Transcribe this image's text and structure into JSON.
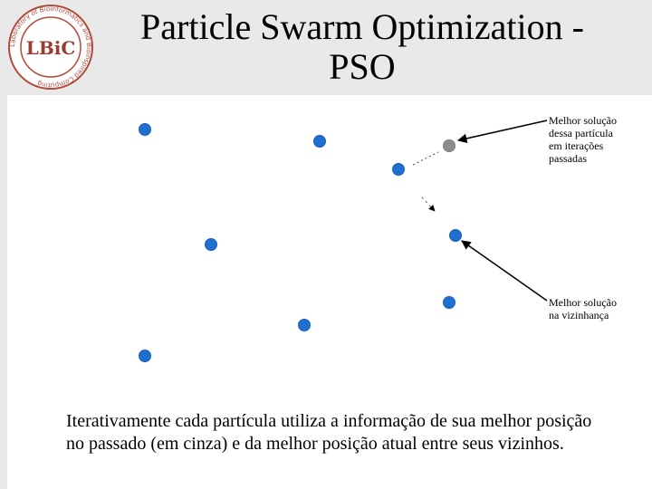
{
  "title": "Particle Swarm Optimization -\nPSO",
  "logo": {
    "initials": "LBiC",
    "ring_text": "Laboratory of Bioinformatics and Bioinspired Computing",
    "accent_color": "#9b3a2e",
    "ring_color": "#b04a3a"
  },
  "annotations": {
    "best_own": "Melhor solução\ndessa partícula\nem iterações\npassadas",
    "best_neighborhood": "Melhor solução\nna vizinhança"
  },
  "body_text": "Iterativamente cada partícula utiliza a informação de sua melhor posição no passado (em cinza) e da melhor posição atual entre seus vizinhos.",
  "colors": {
    "particle": "#1f6fd0",
    "particle_outline": "#1a5fb5",
    "personal_best": "#8c8c8c",
    "header_band": "#e9e9e9"
  }
}
